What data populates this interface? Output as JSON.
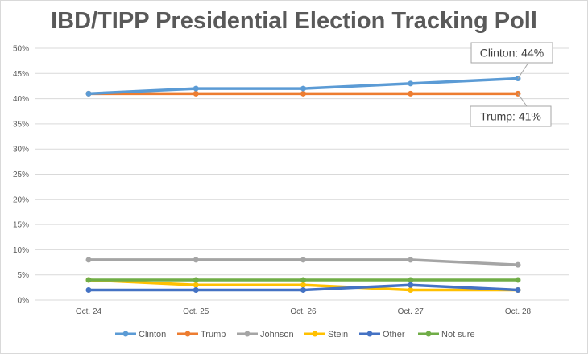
{
  "chart_data": {
    "type": "line",
    "title": "IBD/TIPP Presidential Election Tracking Poll",
    "categories": [
      "Oct. 24",
      "Oct. 25",
      "Oct. 26",
      "Oct. 27",
      "Oct. 28"
    ],
    "y_ticks": [
      "0%",
      "5%",
      "10%",
      "15%",
      "20%",
      "25%",
      "30%",
      "35%",
      "40%",
      "45%",
      "50%"
    ],
    "ylim": [
      0,
      50
    ],
    "y_unit": "%",
    "grid": true,
    "legend_position": "bottom",
    "series": [
      {
        "name": "Clinton",
        "color": "#5b9bd5",
        "values": [
          41,
          42,
          42,
          43,
          44
        ]
      },
      {
        "name": "Trump",
        "color": "#ed7d31",
        "values": [
          41,
          41,
          41,
          41,
          41
        ]
      },
      {
        "name": "Johnson",
        "color": "#a5a5a5",
        "values": [
          8,
          8,
          8,
          8,
          7
        ]
      },
      {
        "name": "Stein",
        "color": "#ffc000",
        "values": [
          4,
          3,
          3,
          2,
          2
        ]
      },
      {
        "name": "Other",
        "color": "#4472c4",
        "values": [
          2,
          2,
          2,
          3,
          2
        ]
      },
      {
        "name": "Not sure",
        "color": "#70ad47",
        "values": [
          4,
          4,
          4,
          4,
          4
        ]
      }
    ],
    "annotations": [
      {
        "text": "Clinton: 44%",
        "series": "Clinton",
        "category": "Oct. 28",
        "value": 44
      },
      {
        "text": "Trump: 41%",
        "series": "Trump",
        "category": "Oct. 28",
        "value": 41
      }
    ]
  }
}
